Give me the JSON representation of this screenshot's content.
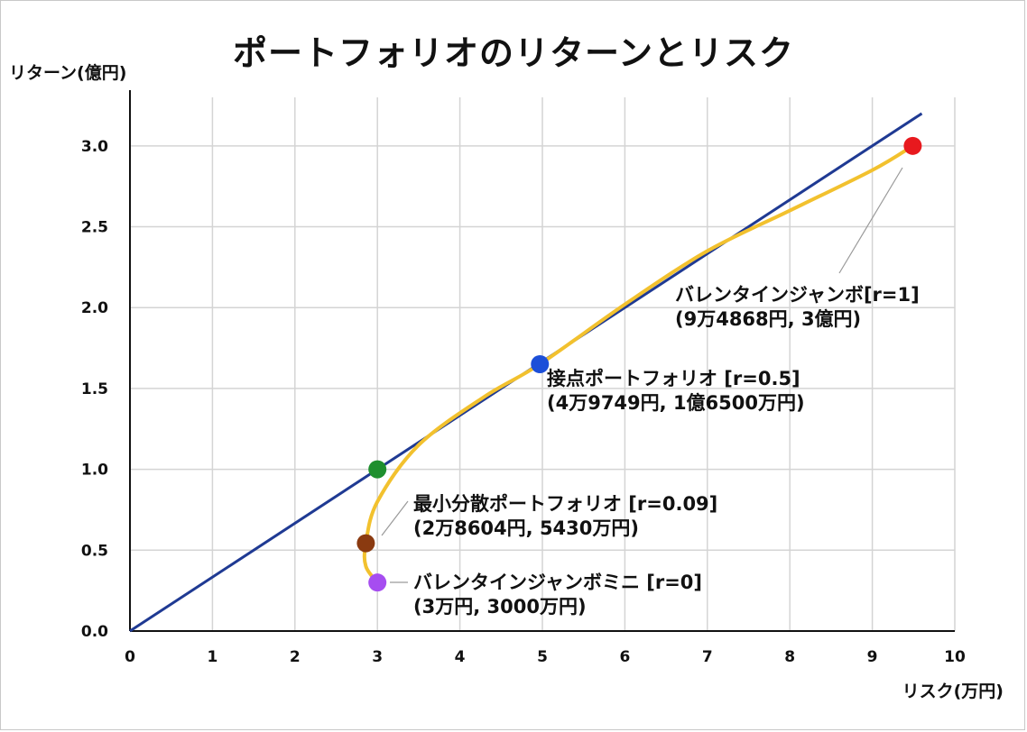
{
  "title": "ポートフォリオのリターンとリスク",
  "colors": {
    "grid": "#d4d4d4",
    "axis": "#111111",
    "line": "#1f3a93",
    "curve": "#f2c12e",
    "points": [
      "#e8191e",
      "#1c4fd8",
      "#1f8f2e",
      "#8a3a10",
      "#a64df0"
    ]
  },
  "chart_data": {
    "type": "scatter",
    "title": "ポートフォリオのリターンとリスク",
    "xlabel": "リスク(万円)",
    "ylabel": "リターン(億円)",
    "xlim": [
      0,
      10
    ],
    "ylim": [
      0,
      3.3
    ],
    "xticks": [
      "0",
      "1",
      "2",
      "3",
      "4",
      "5",
      "6",
      "7",
      "8",
      "9",
      "10"
    ],
    "yticks": [
      "0.0",
      "0.5",
      "1.0",
      "1.5",
      "2.0",
      "2.5",
      "3.0"
    ],
    "grid": true,
    "series": [
      {
        "kind": "line",
        "x": [
          0,
          9.6
        ],
        "y": [
          0,
          3.2
        ]
      },
      {
        "kind": "curve",
        "x": [
          3.0,
          2.86,
          2.86,
          3.0,
          3.5,
          4.3,
          4.97,
          6.0,
          7.0,
          8.0,
          9.0,
          9.49
        ],
        "y": [
          0.3,
          0.4,
          0.54,
          0.8,
          1.15,
          1.45,
          1.65,
          2.02,
          2.35,
          2.6,
          2.85,
          3.0
        ]
      }
    ],
    "points": [
      {
        "x": 9.49,
        "y": 3.0,
        "label1": "バレンタインジャンボ[r=1]",
        "label2": "(9万4868円, 3億円)"
      },
      {
        "x": 4.97,
        "y": 1.65,
        "label1": "接点ポートフォリオ [r=0.5]",
        "label2": "(4万9749円, 1億6500万円)"
      },
      {
        "x": 3.0,
        "y": 1.0,
        "label1": "",
        "label2": ""
      },
      {
        "x": 2.86,
        "y": 0.543,
        "label1": "最小分散ポートフォリオ [r=0.09]",
        "label2": "(2万8604円, 5430万円)"
      },
      {
        "x": 3.0,
        "y": 0.3,
        "label1": "バレンタインジャンボミニ [r=0]",
        "label2": "(3万円, 3000万円)"
      }
    ]
  }
}
